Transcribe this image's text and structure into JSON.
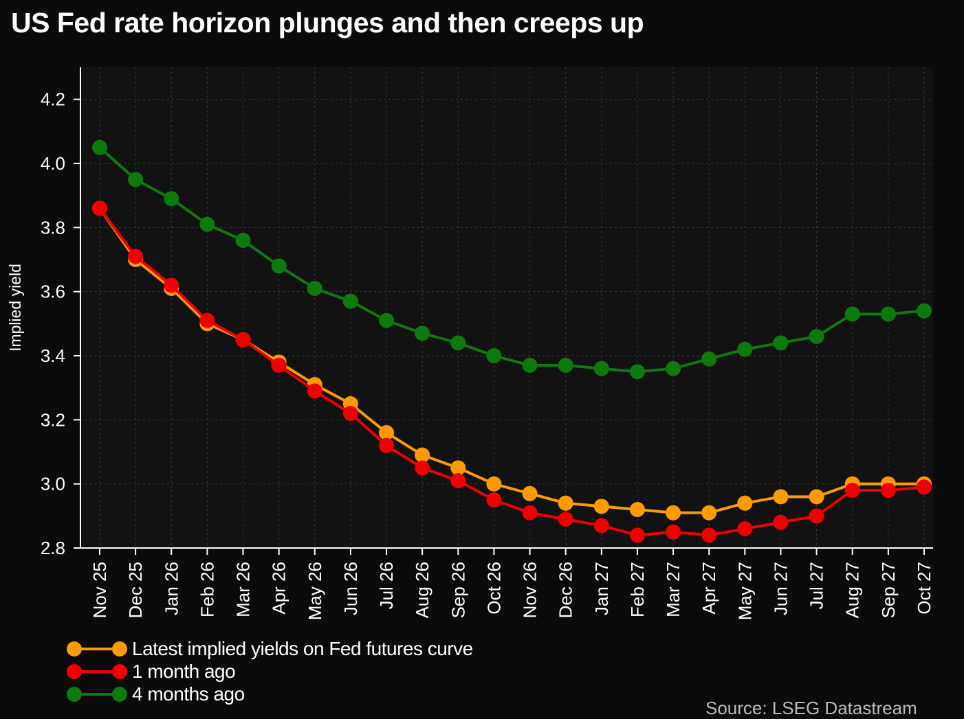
{
  "title": "US Fed rate horizon plunges and then creeps up",
  "source": "Source: LSEG Datastream",
  "chart_data": {
    "type": "line",
    "title": "US Fed rate horizon plunges and then creeps up",
    "xlabel": "",
    "ylabel": "Implied yield",
    "ylim": [
      2.8,
      4.3
    ],
    "yticks": [
      2.8,
      3.0,
      3.2,
      3.4,
      3.6,
      3.8,
      4.0,
      4.2
    ],
    "grid": true,
    "legend_position": "bottom-left",
    "categories": [
      "Nov 25",
      "Dec 25",
      "Jan 26",
      "Feb 26",
      "Mar 26",
      "Apr 26",
      "May 26",
      "Jun 26",
      "Jul 26",
      "Aug 26",
      "Sep 26",
      "Oct 26",
      "Nov 26",
      "Dec 26",
      "Jan 27",
      "Feb 27",
      "Mar 27",
      "Apr 27",
      "May 27",
      "Jun 27",
      "Jul 27",
      "Aug 27",
      "Sep 27",
      "Oct 27"
    ],
    "series": [
      {
        "name": "4 months ago",
        "color": "#0e7a0e",
        "values": [
          4.05,
          3.95,
          3.89,
          3.81,
          3.76,
          3.68,
          3.61,
          3.57,
          3.51,
          3.47,
          3.44,
          3.4,
          3.37,
          3.37,
          3.36,
          3.35,
          3.36,
          3.39,
          3.42,
          3.44,
          3.46,
          3.53,
          3.53,
          3.54
        ]
      },
      {
        "name": "Latest implied yields on Fed futures curve",
        "color": "#ff9b00",
        "values": [
          3.86,
          3.7,
          3.61,
          3.5,
          3.45,
          3.38,
          3.31,
          3.25,
          3.16,
          3.09,
          3.05,
          3.0,
          2.97,
          2.94,
          2.93,
          2.92,
          2.91,
          2.91,
          2.94,
          2.96,
          2.96,
          3.0,
          3.0,
          3.0
        ]
      },
      {
        "name": "1 month ago",
        "color": "#ee0000",
        "values": [
          3.86,
          3.71,
          3.62,
          3.51,
          3.45,
          3.37,
          3.29,
          3.22,
          3.12,
          3.05,
          3.01,
          2.95,
          2.91,
          2.89,
          2.87,
          2.84,
          2.85,
          2.84,
          2.86,
          2.88,
          2.9,
          2.98,
          2.98,
          2.99
        ]
      }
    ],
    "legend": [
      {
        "name": "Latest implied yields on Fed futures curve",
        "color": "#ff9b00"
      },
      {
        "name": "1 month ago",
        "color": "#ee0000"
      },
      {
        "name": "4 months ago",
        "color": "#0e7a0e"
      }
    ]
  }
}
